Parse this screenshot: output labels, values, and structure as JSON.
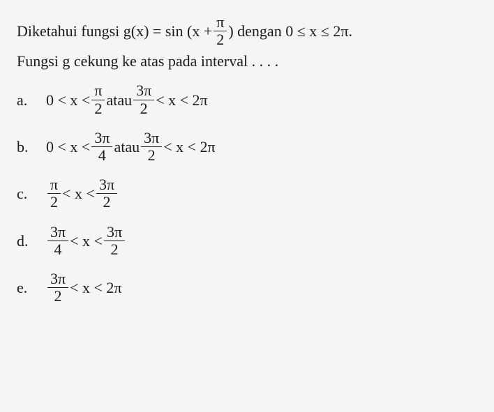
{
  "question": {
    "line1_before": "Diketahui fungsi g(x) = sin (x + ",
    "line1_frac_num": "π",
    "line1_frac_den": "2",
    "line1_after": ") dengan 0 ≤ x ≤ 2π.",
    "line2": "Fungsi g cekung ke atas pada interval . . . ."
  },
  "options": {
    "a": {
      "label": "a.",
      "p1": "0 < x < ",
      "f1n": "π",
      "f1d": "2",
      "mid": " atau ",
      "f2n": "3π",
      "f2d": "2",
      "p2": " < x < 2π"
    },
    "b": {
      "label": "b.",
      "p1": "0 < x < ",
      "f1n": "3π",
      "f1d": "4",
      "mid": " atau ",
      "f2n": "3π",
      "f2d": "2",
      "p2": " < x < 2π"
    },
    "c": {
      "label": "c.",
      "f1n": "π",
      "f1d": "2",
      "mid": " < x < ",
      "f2n": "3π",
      "f2d": "2"
    },
    "d": {
      "label": "d.",
      "f1n": "3π",
      "f1d": "4",
      "mid": " < x < ",
      "f2n": "3π",
      "f2d": "2"
    },
    "e": {
      "label": "e.",
      "f1n": "3π",
      "f1d": "2",
      "mid": " < x < 2π"
    }
  },
  "style": {
    "background": "#f5f5f3",
    "text_color": "#1a1a1a",
    "font_family": "Times New Roman",
    "font_size_pt": 17
  }
}
